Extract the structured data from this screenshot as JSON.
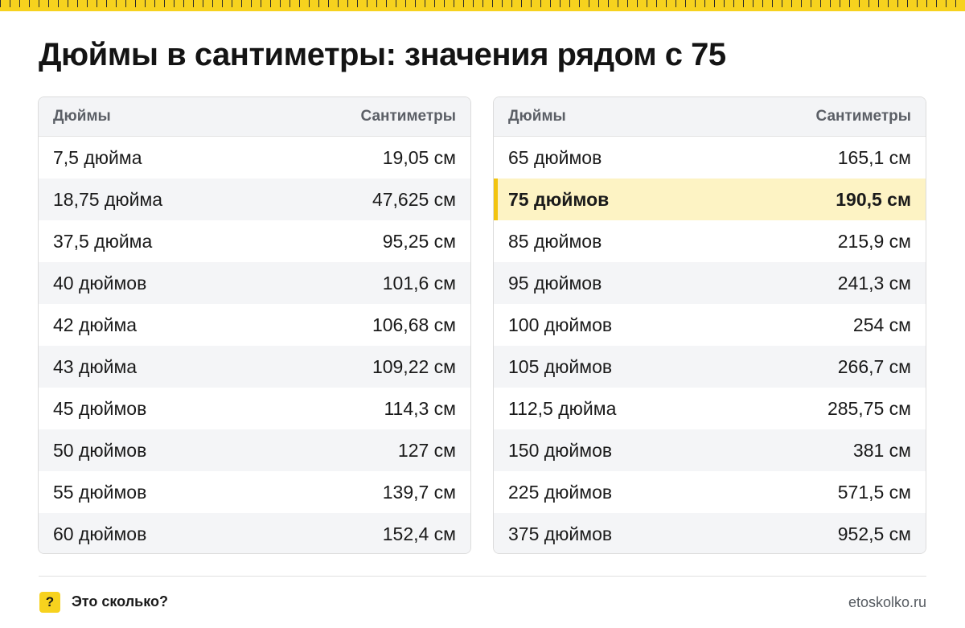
{
  "title": "Дюймы в сантиметры: значения рядом с 75",
  "colors": {
    "accent": "#f7d21e",
    "highlight_bg": "#fdf3c4",
    "highlight_bar": "#f2c40f"
  },
  "tables": [
    {
      "headers": {
        "inches": "Дюймы",
        "cm": "Сантиметры"
      },
      "rows": [
        {
          "inches": "7,5 дюйма",
          "cm": "19,05 см"
        },
        {
          "inches": "18,75 дюйма",
          "cm": "47,625 см"
        },
        {
          "inches": "37,5 дюйма",
          "cm": "95,25 см"
        },
        {
          "inches": "40 дюймов",
          "cm": "101,6 см"
        },
        {
          "inches": "42 дюйма",
          "cm": "106,68 см"
        },
        {
          "inches": "43 дюйма",
          "cm": "109,22 см"
        },
        {
          "inches": "45 дюймов",
          "cm": "114,3 см"
        },
        {
          "inches": "50 дюймов",
          "cm": "127 см"
        },
        {
          "inches": "55 дюймов",
          "cm": "139,7 см"
        },
        {
          "inches": "60 дюймов",
          "cm": "152,4 см"
        }
      ]
    },
    {
      "headers": {
        "inches": "Дюймы",
        "cm": "Сантиметры"
      },
      "rows": [
        {
          "inches": "65 дюймов",
          "cm": "165,1 см"
        },
        {
          "inches": "75 дюймов",
          "cm": "190,5 см",
          "highlighted": true
        },
        {
          "inches": "85 дюймов",
          "cm": "215,9 см"
        },
        {
          "inches": "95 дюймов",
          "cm": "241,3 см"
        },
        {
          "inches": "100 дюймов",
          "cm": "254 см"
        },
        {
          "inches": "105 дюймов",
          "cm": "266,7 см"
        },
        {
          "inches": "112,5 дюйма",
          "cm": "285,75 см"
        },
        {
          "inches": "150 дюймов",
          "cm": "381 см"
        },
        {
          "inches": "225 дюймов",
          "cm": "571,5 см"
        },
        {
          "inches": "375 дюймов",
          "cm": "952,5 см"
        }
      ]
    }
  ],
  "footer": {
    "badge": "?",
    "brand": "Это сколько?",
    "site": "etoskolko.ru"
  }
}
